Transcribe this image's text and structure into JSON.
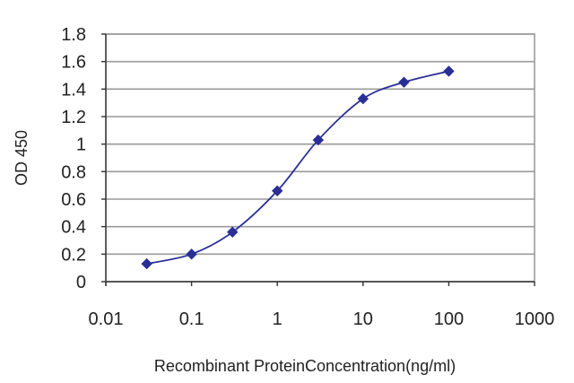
{
  "chart_data": {
    "type": "line",
    "title": "",
    "xlabel": "Recombinant ProteinConcentration(ng/ml)",
    "ylabel": "OD 450",
    "x_scale": "log",
    "xlim": [
      0.01,
      1000
    ],
    "ylim": [
      0,
      1.8
    ],
    "x_ticks": [
      "0.01",
      "0.1",
      "1",
      "10",
      "100",
      "1000"
    ],
    "y_ticks": [
      "0",
      "0.2",
      "0.4",
      "0.6",
      "0.8",
      "1",
      "1.2",
      "1.4",
      "1.6",
      "1.8"
    ],
    "grid": "horizontal",
    "legend": "none",
    "series": [
      {
        "color": "#2a2f96",
        "marker": "diamond",
        "x": [
          0.03,
          0.1,
          0.3,
          1,
          3,
          10,
          30,
          100
        ],
        "y": [
          0.13,
          0.2,
          0.36,
          0.66,
          1.03,
          1.33,
          1.45,
          1.53
        ]
      }
    ]
  }
}
